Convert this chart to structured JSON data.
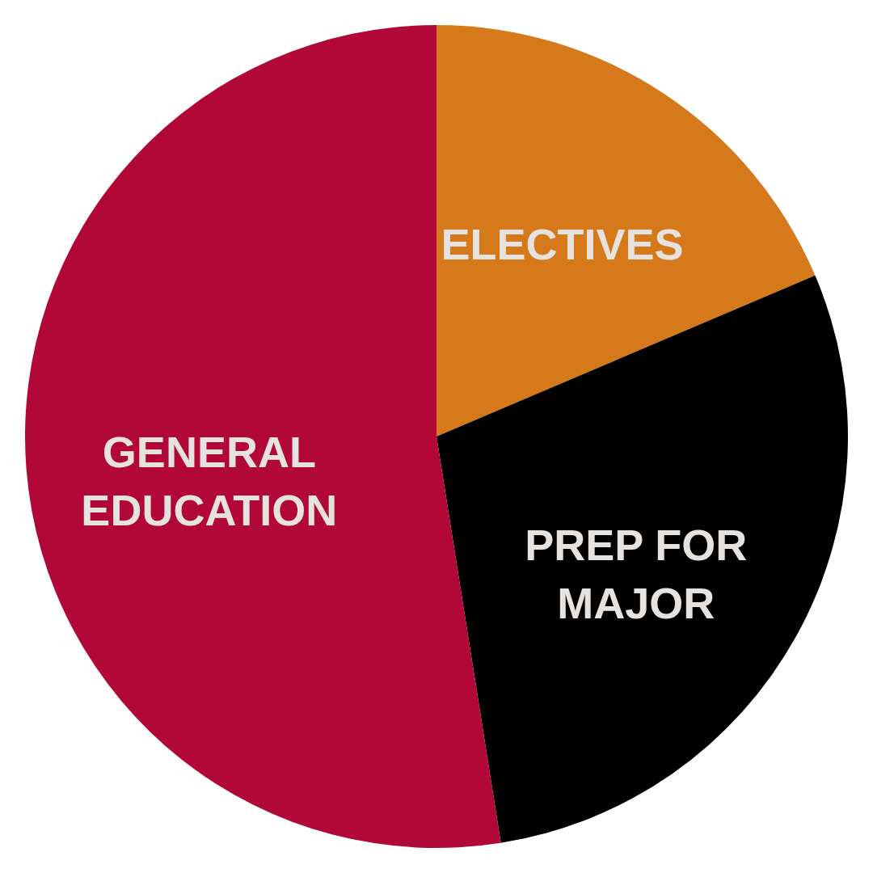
{
  "chart_data": {
    "type": "pie",
    "categories": [
      "ELECTIVES",
      "PREP FOR MAJOR",
      "GENERAL EDUCATION"
    ],
    "values": [
      18.6,
      28.9,
      52.5
    ],
    "colors": [
      "#d5791b",
      "#000000",
      "#b20838"
    ]
  }
}
